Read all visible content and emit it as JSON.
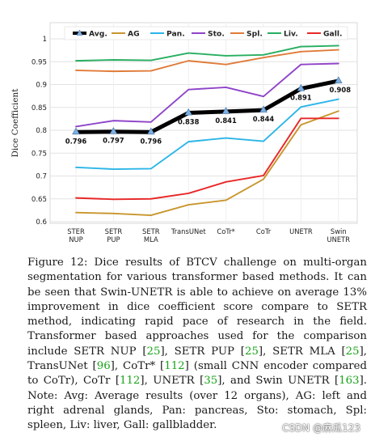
{
  "chart_data": {
    "type": "line",
    "title": "",
    "xlabel": "",
    "ylabel": "Dice Coefficient",
    "ylim": [
      0.6,
      1.0
    ],
    "yticks": [
      "0.6",
      "0.65",
      "0.7",
      "0.75",
      "0.8",
      "0.85",
      "0.9",
      "0.95",
      "1"
    ],
    "grid": true,
    "legend_position": "top",
    "categories": [
      [
        "STER",
        "NUP"
      ],
      [
        "SETR",
        "PUP"
      ],
      [
        "SETR",
        "MLA"
      ],
      [
        "TransUNet"
      ],
      [
        "CoTr*"
      ],
      [
        "CoTr"
      ],
      [
        "UNETR"
      ],
      [
        "Swin",
        "UNETR"
      ]
    ],
    "series": [
      {
        "name": "Avg.",
        "color": "#000000",
        "values": [
          0.796,
          0.797,
          0.796,
          0.838,
          0.841,
          0.844,
          0.891,
          0.908
        ],
        "data_labels": [
          "0.796",
          "0.797",
          "0.796",
          "0.838",
          "0.841",
          "0.844",
          "0.891",
          "0.908"
        ]
      },
      {
        "name": "AG",
        "color": "#c8962e",
        "values": [
          0.62,
          0.618,
          0.614,
          0.637,
          0.647,
          0.693,
          0.812,
          0.842
        ]
      },
      {
        "name": "Pan.",
        "color": "#2bb5e8",
        "values": [
          0.719,
          0.715,
          0.716,
          0.775,
          0.783,
          0.776,
          0.851,
          0.868
        ]
      },
      {
        "name": "Sto.",
        "color": "#8e44c8",
        "values": [
          0.808,
          0.821,
          0.818,
          0.889,
          0.894,
          0.874,
          0.944,
          0.946
        ]
      },
      {
        "name": "Spl.",
        "color": "#e07b39",
        "values": [
          0.931,
          0.929,
          0.93,
          0.952,
          0.944,
          0.959,
          0.972,
          0.976
        ]
      },
      {
        "name": "Liv.",
        "color": "#27ae60",
        "values": [
          0.952,
          0.954,
          0.953,
          0.969,
          0.963,
          0.965,
          0.983,
          0.985
        ]
      },
      {
        "name": "Gall.",
        "color": "#e82828",
        "values": [
          0.652,
          0.649,
          0.65,
          0.662,
          0.687,
          0.701,
          0.826,
          0.826
        ]
      }
    ]
  },
  "caption": {
    "parts": [
      {
        "text": "Figure 12: Dice results of BTCV challenge on multi-organ segmentation for various transformer based methods. It can be seen that Swin-UNETR is able to achieve on average 13% improvement in dice coefficient score compare to SETR method, indicating rapid pace of research in the field. Transformer based approaches used for the comparison include SETR NUP [",
        "cite": false
      },
      {
        "text": "25",
        "cite": true
      },
      {
        "text": "], SETR PUP [",
        "cite": false
      },
      {
        "text": "25",
        "cite": true
      },
      {
        "text": "], SETR MLA [",
        "cite": false
      },
      {
        "text": "25",
        "cite": true
      },
      {
        "text": "], TransUNet [",
        "cite": false
      },
      {
        "text": "96",
        "cite": true
      },
      {
        "text": "], CoTr* [",
        "cite": false
      },
      {
        "text": "112",
        "cite": true
      },
      {
        "text": "] (small CNN encoder compared to CoTr), CoTr [",
        "cite": false
      },
      {
        "text": "112",
        "cite": true
      },
      {
        "text": "], UNETR [",
        "cite": false
      },
      {
        "text": "35",
        "cite": true
      },
      {
        "text": "], and Swin UNETR [",
        "cite": false
      },
      {
        "text": "163",
        "cite": true
      },
      {
        "text": "]. Note: Avg: Average results (over 12 organs), AG: left and right adrenal glands, Pan: pancreas, Sto: stomach, Spl: spleen, Liv: liver, Gall: gallbladder.",
        "cite": false
      }
    ],
    "cite_color": "#17a317"
  },
  "watermark": "CSDN @麻瓜123"
}
